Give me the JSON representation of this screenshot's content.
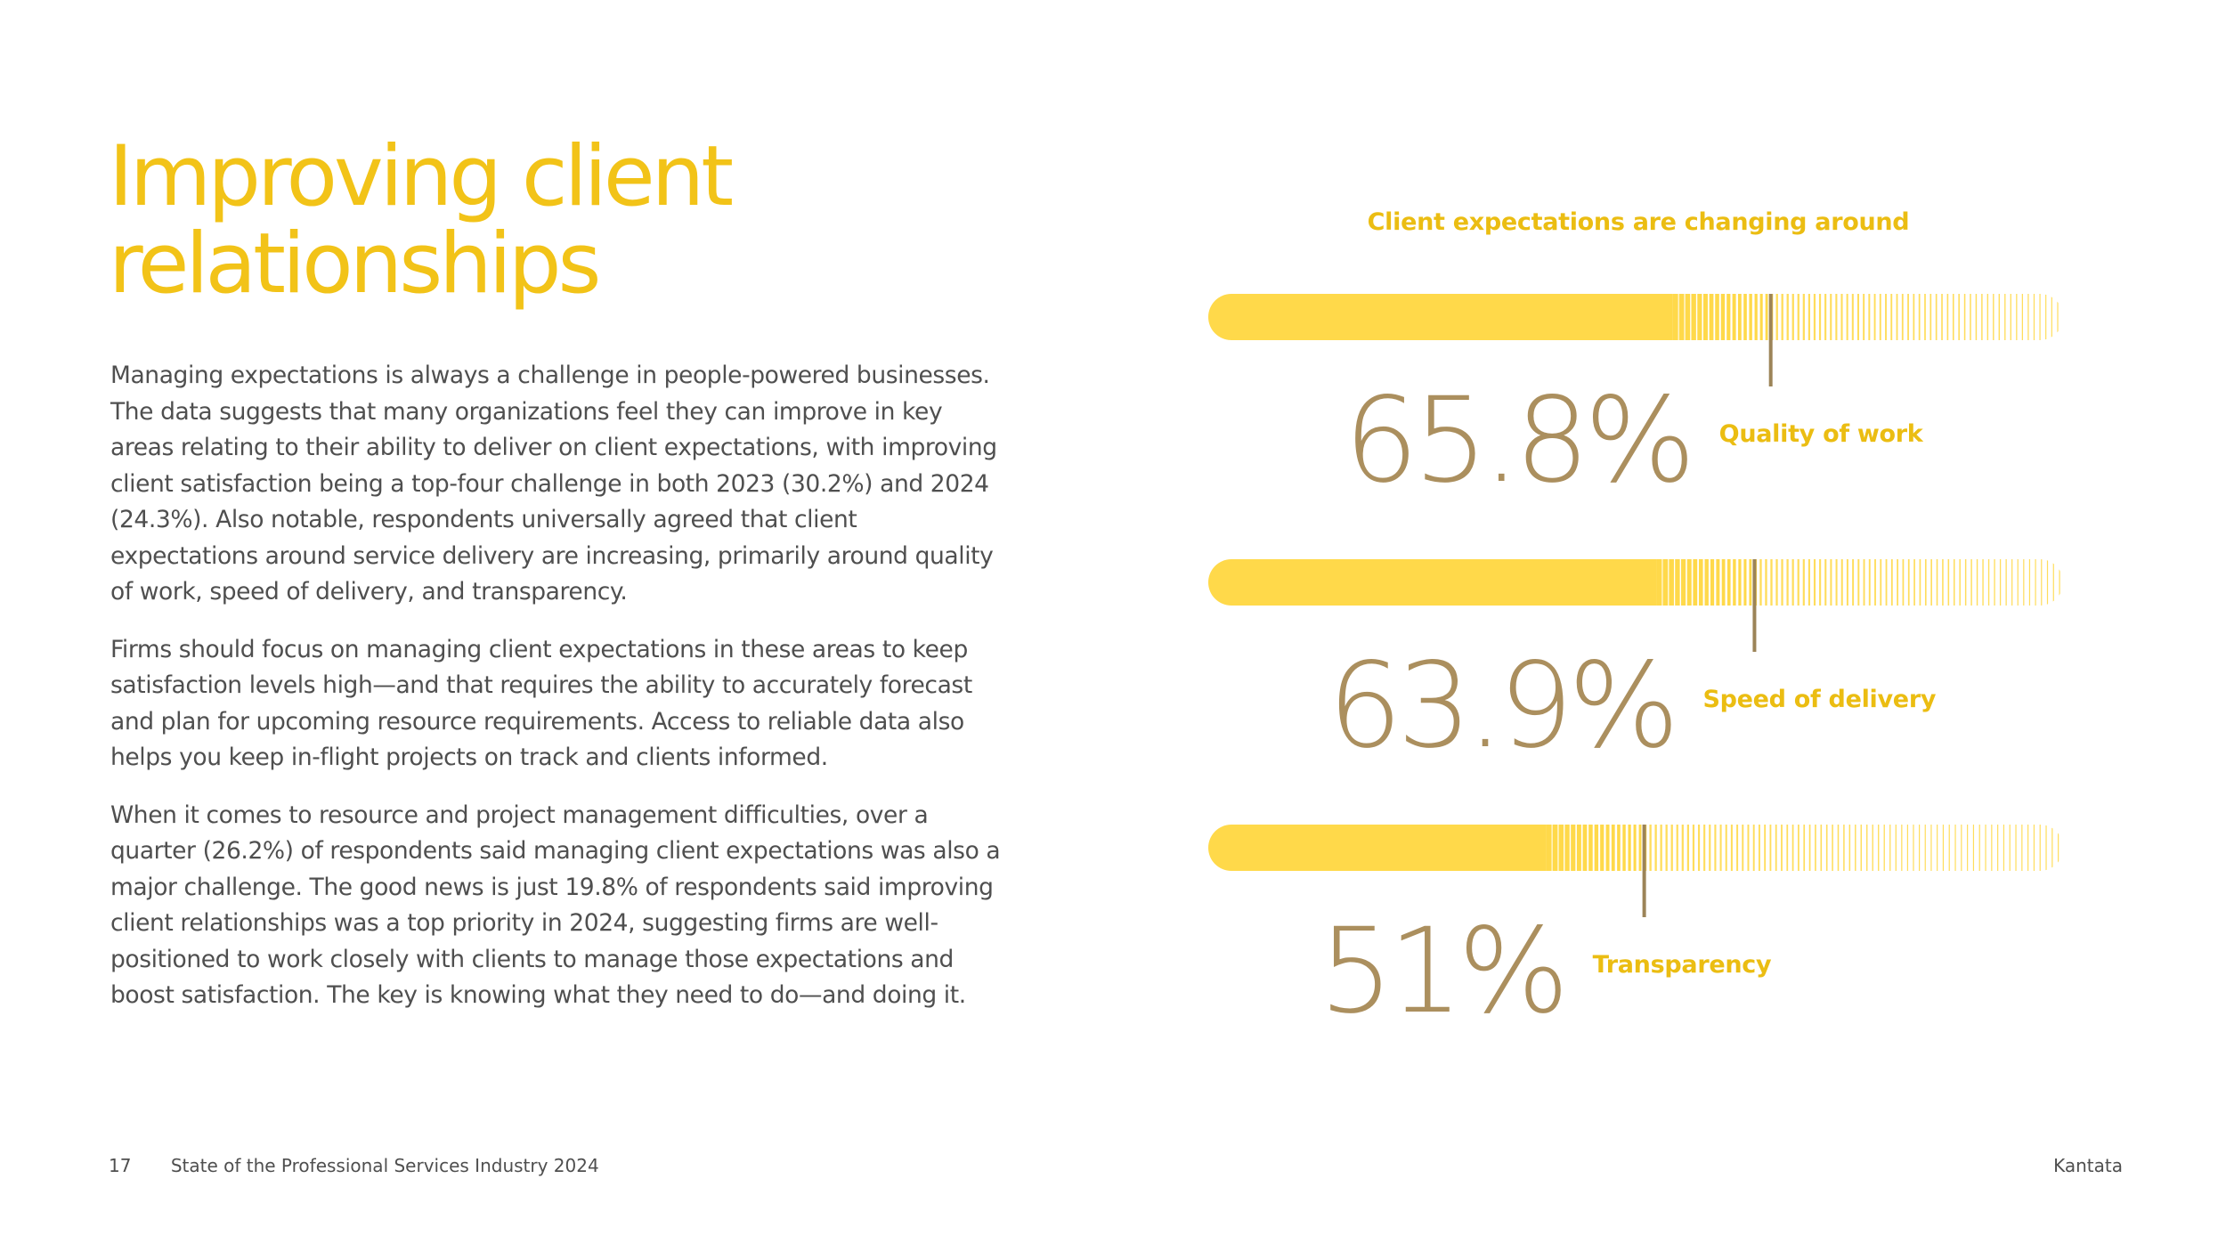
{
  "title_line1": "Improving client",
  "title_line2": "relationships",
  "paragraphs": [
    "Managing expectations is always a challenge in people-powered businesses. The data suggests that many organizations feel they can improve in key areas relating to their ability to deliver on client expectations, with improving client satisfaction being a top-four challenge in both 2023 (30.2%) and 2024 (24.3%). Also notable, respondents universally agreed that client expectations around service delivery are increasing, primarily around quality of work, speed of delivery, and transparency.",
    "Firms should focus on managing client expectations in these areas to keep satisfaction levels high—and that requires the ability to accurately forecast and plan for upcoming resource requirements. Access to reliable data also helps you keep in-flight projects on track and clients informed.",
    "When it comes to resource and project management difficulties, over a quarter (26.2%) of respondents said managing client expectations was also a major challenge. The good news is just 19.8% of respondents said improving client relationships was a top priority in 2024, suggesting firms are well-positioned to work closely with clients to manage those expectations and boost satisfaction. The key is knowing what they need to do—and doing it."
  ],
  "footer": {
    "page_number": "17",
    "report_title": "State of the Professional Services Industry 2024",
    "brand": "Kantata"
  },
  "colors": {
    "accent": "#f2c318",
    "bar_fill": "#ffd94a",
    "value_text": "#ab8f5e",
    "label_text": "#ebbd12",
    "marker": "#9c8458"
  },
  "chart_data": {
    "type": "bar",
    "title": "Client expectations are changing around",
    "ylim": [
      0,
      100
    ],
    "categories": [
      "Quality of work",
      "Speed of delivery",
      "Transparency"
    ],
    "values": [
      65.8,
      63.9,
      51
    ],
    "value_labels": [
      "65.8%",
      "63.9%",
      "51%"
    ]
  }
}
